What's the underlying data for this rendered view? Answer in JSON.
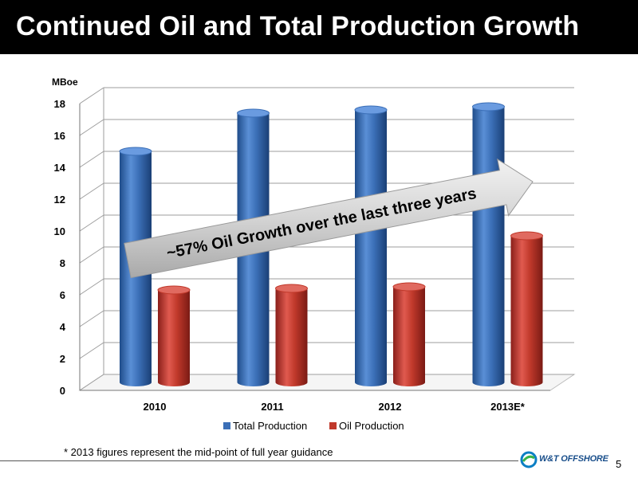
{
  "slide": {
    "title": "Continued Oil and Total Production Growth",
    "footnote": "* 2013 figures represent the mid-point of full year guidance",
    "page_number": "5",
    "logo_text": "W&T OFFSHORE"
  },
  "chart_data": {
    "type": "bar",
    "style": "3d-cylinder",
    "categories": [
      "2010",
      "2011",
      "2012",
      "2013E*"
    ],
    "series": [
      {
        "name": "Total Production",
        "color": "#3b6fb7",
        "values": [
          14.6,
          17.0,
          17.2,
          17.4
        ]
      },
      {
        "name": "Oil Production",
        "color": "#c0392b",
        "values": [
          5.9,
          6.0,
          6.1,
          9.3
        ]
      }
    ],
    "ylabel": "MBoe",
    "ylim": [
      0,
      18
    ],
    "yticks": [
      0,
      2,
      4,
      6,
      8,
      10,
      12,
      14,
      16,
      18
    ],
    "grid": true,
    "legend": "bottom",
    "annotation": "~57% Oil Growth over the last three years"
  }
}
